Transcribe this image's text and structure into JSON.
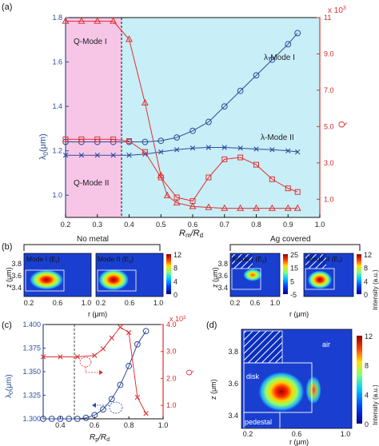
{
  "panels": {
    "a": "(a)",
    "b": "(b)",
    "c": "(c)",
    "d": "(d)"
  },
  "panel_a": {
    "xlabel_main": "R",
    "xlabel_sub1": "m",
    "xlabel_slash": "/R",
    "xlabel_sub2": "d",
    "ylabel_left_main": "λ",
    "ylabel_left_sub": "0",
    "ylabel_left_unit": "(μm)",
    "ylabel_right": "Q",
    "right_multiplier": "x 10",
    "right_multiplier_exp": "3",
    "x_ticks": [
      "0.2",
      "0.3",
      "0.4",
      "0.5",
      "0.6",
      "0.7",
      "0.8",
      "0.9",
      "1.0"
    ],
    "y_left_ticks": [
      "1.0",
      "1.2",
      "1.4",
      "1.6",
      "1.8"
    ],
    "y_right_ticks": [
      "1.0",
      "3.0",
      "5.0",
      "7.0",
      "9.0",
      "11"
    ],
    "annotations": {
      "qmode1": "Q-Mode I",
      "qmode2": "Q-Mode II",
      "lmode1": "λ-Mode I",
      "lmode2": "λ-Mode II"
    },
    "colors": {
      "pink": "#f7c6e6",
      "cyan": "#c8eef7",
      "blue": "#2d4b9a",
      "red": "#e03030"
    }
  },
  "panel_b": {
    "left_title": "No metal",
    "right_title": "Ag covered",
    "maps": [
      {
        "label_main": "Mode I (E",
        "label_sub": "r",
        "label_end": ")"
      },
      {
        "label_main": "Mode II (E",
        "label_sub": "z",
        "label_end": ")"
      },
      {
        "label_main": "Mode I (E",
        "label_sub": "z",
        "label_end": ")"
      },
      {
        "label_main": "Mode II (E",
        "label_sub": "r",
        "label_end": ")"
      }
    ],
    "ylabel": "z (μm)",
    "xlabel": "r (μm)",
    "y_ticks": [
      "3.8",
      "3.6",
      "3.4"
    ],
    "x_ticks": [
      "0.2",
      "0.6",
      "1.0"
    ],
    "cbar_left_ticks": [
      "12",
      "8",
      "4",
      "0"
    ],
    "cbar_right_ticks_a": [
      "25",
      "15",
      "5",
      "-5"
    ],
    "cbar_right_ticks_b": [
      "12",
      "8",
      "4",
      "0"
    ],
    "cbar_label": "Intensity (a.u.)"
  },
  "panel_c": {
    "ylabel_left_main": "λ",
    "ylabel_left_sub": "0",
    "ylabel_left_unit": "(μm)",
    "ylabel_right": "Q",
    "right_multiplier": "x 10",
    "right_multiplier_exp": "3",
    "xlabel_main": "R",
    "xlabel_sub1": "p",
    "xlabel_slash": "/R",
    "xlabel_sub2": "d",
    "x_ticks": [
      "0.4",
      "0.6",
      "0.8",
      "1.0"
    ],
    "y_left_ticks": [
      "1.400",
      "1.375",
      "1.350",
      "1.325",
      "1.300"
    ],
    "y_right_ticks": [
      "4.0",
      "3.0",
      "2.0",
      "1.0"
    ]
  },
  "panel_d": {
    "ylabel": "z (μm)",
    "xlabel": "r (μm)",
    "y_ticks": [
      "3.8",
      "3.6",
      "3.4"
    ],
    "x_ticks": [
      "0.2",
      "0.6",
      "1.0"
    ],
    "region_air": "air",
    "region_disk": "disk",
    "region_pedestal": "pedestal",
    "cbar_ticks": [
      "12",
      "8",
      "4",
      "0"
    ],
    "cbar_label": "Intensity (a.u.)"
  },
  "chart_data": [
    {
      "type": "line",
      "id": "panel-a",
      "xlabel": "Rm/Rd",
      "ylabel": "λ0 (μm)",
      "y2label": "Q (x 10^3)",
      "xlim": [
        0.2,
        1.0
      ],
      "ylim": [
        0.9,
        1.8
      ],
      "y2lim": [
        0,
        11
      ],
      "series": [
        {
          "name": "λ-Mode I",
          "axis": "left",
          "marker": "circle",
          "x": [
            0.2,
            0.25,
            0.3,
            0.35,
            0.4,
            0.45,
            0.5,
            0.55,
            0.6,
            0.65,
            0.7,
            0.75,
            0.8,
            0.85,
            0.9,
            0.93
          ],
          "y": [
            1.24,
            1.24,
            1.24,
            1.24,
            1.24,
            1.24,
            1.245,
            1.26,
            1.29,
            1.33,
            1.4,
            1.47,
            1.54,
            1.61,
            1.68,
            1.73
          ]
        },
        {
          "name": "λ-Mode II",
          "axis": "left",
          "marker": "x",
          "x": [
            0.2,
            0.25,
            0.3,
            0.35,
            0.4,
            0.45,
            0.5,
            0.55,
            0.6,
            0.65,
            0.7,
            0.75,
            0.8,
            0.85,
            0.9,
            0.93
          ],
          "y": [
            1.18,
            1.18,
            1.18,
            1.18,
            1.18,
            1.185,
            1.195,
            1.205,
            1.212,
            1.215,
            1.215,
            1.212,
            1.208,
            1.205,
            1.2,
            1.195
          ]
        },
        {
          "name": "Q-Mode I",
          "axis": "right",
          "marker": "triangle",
          "x": [
            0.2,
            0.25,
            0.3,
            0.35,
            0.4,
            0.45,
            0.5,
            0.52,
            0.55,
            0.6,
            0.65,
            0.7,
            0.75,
            0.8,
            0.85,
            0.9,
            0.93
          ],
          "y": [
            10.8,
            10.8,
            10.8,
            10.8,
            9.8,
            6.3,
            2.3,
            1.2,
            0.8,
            0.6,
            0.55,
            0.5,
            0.5,
            0.5,
            0.5,
            0.5,
            0.5
          ]
        },
        {
          "name": "Q-Mode II",
          "axis": "right",
          "marker": "square",
          "x": [
            0.2,
            0.25,
            0.3,
            0.35,
            0.4,
            0.45,
            0.5,
            0.55,
            0.6,
            0.65,
            0.7,
            0.75,
            0.8,
            0.85,
            0.9,
            0.93
          ],
          "y": [
            4.3,
            4.3,
            4.3,
            4.3,
            4.2,
            3.6,
            2.2,
            1.1,
            0.9,
            2.2,
            3.2,
            3.3,
            2.9,
            2.1,
            1.6,
            1.4
          ]
        }
      ]
    },
    {
      "type": "line",
      "id": "panel-c",
      "xlabel": "Rp/Rd",
      "ylabel": "λ0 (μm)",
      "y2label": "Q (x 10^3)",
      "xlim": [
        0.3,
        1.0
      ],
      "ylim": [
        1.3,
        1.4
      ],
      "y2lim": [
        0.5,
        4.0
      ],
      "series": [
        {
          "name": "λ0",
          "axis": "left",
          "marker": "circle",
          "x": [
            0.3,
            0.35,
            0.4,
            0.45,
            0.5,
            0.55,
            0.6,
            0.65,
            0.7,
            0.75,
            0.8,
            0.85,
            0.9
          ],
          "y": [
            1.3,
            1.3,
            1.3,
            1.3,
            1.3,
            1.301,
            1.304,
            1.31,
            1.321,
            1.336,
            1.356,
            1.379,
            1.393
          ]
        },
        {
          "name": "Q",
          "axis": "right",
          "marker": "x",
          "x": [
            0.3,
            0.4,
            0.5,
            0.6,
            0.65,
            0.7,
            0.75,
            0.8,
            0.85,
            0.9
          ],
          "y": [
            2.8,
            2.8,
            2.8,
            2.85,
            3.1,
            3.5,
            3.9,
            3.7,
            1.3,
            0.7
          ]
        }
      ]
    }
  ]
}
